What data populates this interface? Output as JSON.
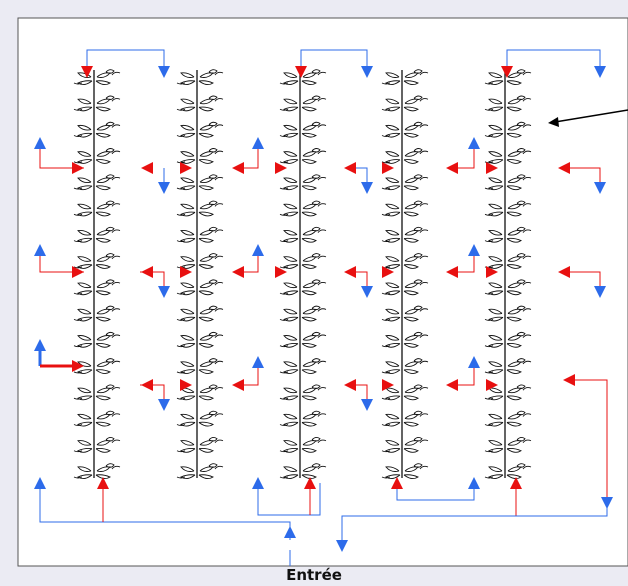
{
  "diagram": {
    "caption": "Entrée",
    "plant_columns": 5,
    "leaf_pairs_per_column": 16,
    "colors": {
      "background": "#ebebf3",
      "frame": "#555555",
      "red_flow": "#e81010",
      "blue_flow": "#2d6bea",
      "plant": "#111111"
    }
  }
}
